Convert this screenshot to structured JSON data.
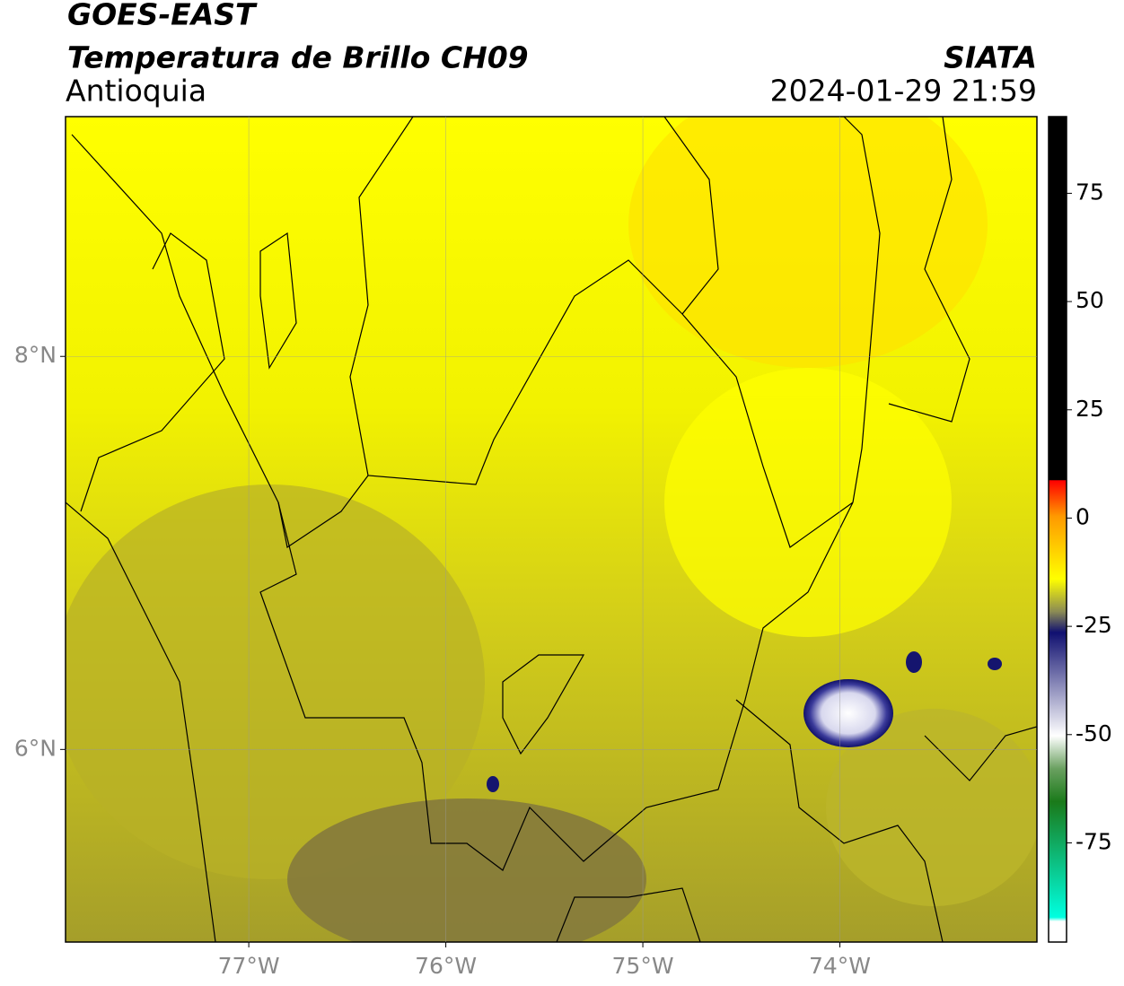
{
  "header": {
    "title": "GOES-EAST",
    "subtitle": "Temperatura de Brillo CH09",
    "region": "Antioquia",
    "source": "SIATA",
    "datetime": "2024-01-29 21:59"
  },
  "map": {
    "xlim": [
      -77.93,
      -73.0
    ],
    "ylim": [
      5.02,
      9.22
    ],
    "xticks": [
      {
        "value": -77,
        "label": "77°W"
      },
      {
        "value": -76,
        "label": "76°W"
      },
      {
        "value": -75,
        "label": "75°W"
      },
      {
        "value": -74,
        "label": "74°W"
      }
    ],
    "yticks": [
      {
        "value": 8,
        "label": "8°N"
      },
      {
        "value": 6,
        "label": "6°N"
      }
    ]
  },
  "colorbar": {
    "lim": [
      -97.9,
      92.7
    ],
    "ticks": [
      75,
      50,
      25,
      0,
      -25,
      -50,
      -75
    ]
  }
}
